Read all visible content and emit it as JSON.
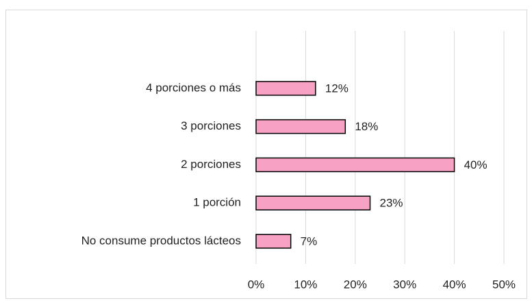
{
  "chart_data": {
    "type": "bar",
    "orientation": "horizontal",
    "categories": [
      "4 porciones o más",
      "3 porciones",
      "2 porciones",
      "1 porción",
      "No consume productos lácteos"
    ],
    "values": [
      12,
      18,
      40,
      23,
      7
    ],
    "value_labels": [
      "12%",
      "18%",
      "40%",
      "23%",
      "7%"
    ],
    "color": "#f7a1c4",
    "xlim": [
      0,
      50
    ],
    "xticks": [
      {
        "value": 0,
        "label": "0%"
      },
      {
        "value": 10,
        "label": "10%"
      },
      {
        "value": 20,
        "label": "20%"
      },
      {
        "value": 30,
        "label": "30%"
      },
      {
        "value": 40,
        "label": "40%"
      },
      {
        "value": 50,
        "label": "50%"
      }
    ],
    "grid": true
  }
}
